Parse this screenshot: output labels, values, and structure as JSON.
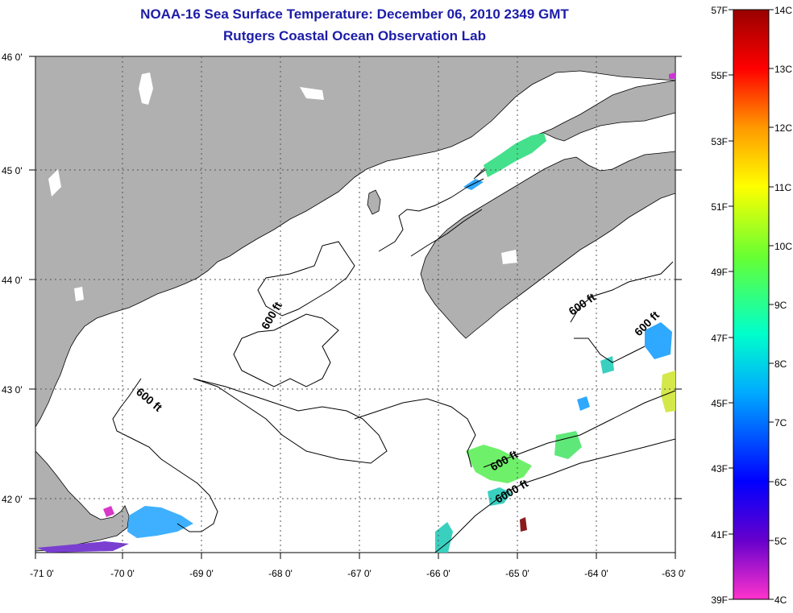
{
  "title_line1": "NOAA-16 Sea Surface Temperature:  December 06, 2010 2349 GMT",
  "title_line2": "Rutgers Coastal Ocean Observation Lab",
  "map": {
    "lon_labels": [
      "-71 0'",
      "-70 0'",
      "-69 0'",
      "-68 0'",
      "-67 0'",
      "-66 0'",
      "-65 0'",
      "-64 0'",
      "-63 0'"
    ],
    "lat_labels": [
      "46 0'",
      "45 0'",
      "44 0'",
      "43 0'",
      "42 0'"
    ],
    "contour_labels": [
      "600 ft",
      "600 ft",
      "600 ft",
      "600 ft",
      "600 ft",
      "6000 ft"
    ],
    "colors": {
      "land": "#b0b0b0",
      "water": "#ffffff",
      "grid": "#555555"
    }
  },
  "colorbar": {
    "fahrenheit": [
      "57F",
      "55F",
      "53F",
      "51F",
      "49F",
      "47F",
      "45F",
      "43F",
      "41F",
      "39F"
    ],
    "celsius": [
      "14C",
      "13C",
      "12C",
      "11C",
      "10C",
      "9C",
      "8C",
      "7C",
      "6C",
      "5C",
      "4C"
    ],
    "gradient": [
      "#ff33cc",
      "#6600cc",
      "#0000ff",
      "#00aaff",
      "#00ffcc",
      "#66ff33",
      "#ffff00",
      "#ff9900",
      "#ff0000",
      "#990000"
    ]
  }
}
